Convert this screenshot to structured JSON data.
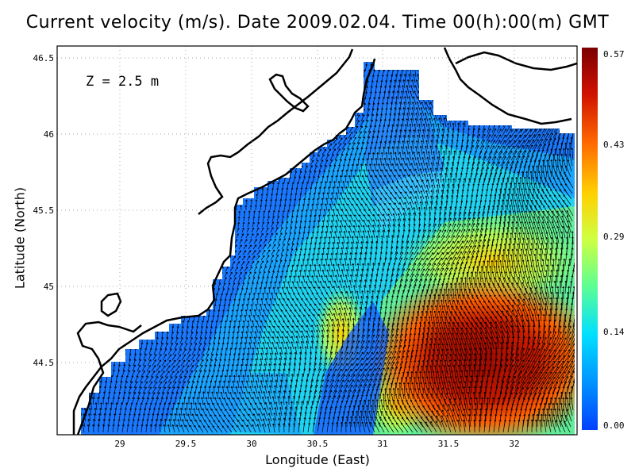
{
  "title": "Current velocity (m/s). Date 2009.02.04. Time 00(h):00(m) GMT",
  "depth_label": "Z = 2.5 m",
  "x_axis": {
    "label": "Longitude (East)",
    "ticks": [
      "29",
      "29.5",
      "30",
      "30.5",
      "31",
      "31.5",
      "32"
    ],
    "range": [
      28.5,
      32.45
    ]
  },
  "y_axis": {
    "label": "Latitude (North)",
    "ticks": [
      "44.5",
      "45",
      "45.5",
      "46",
      "46.5"
    ],
    "range": [
      44.04,
      46.55
    ]
  },
  "colorbar": {
    "ticks": [
      "0.57",
      "0.43",
      "0.29",
      "0.14",
      "0.00"
    ],
    "min": 0.0,
    "max": 0.57,
    "colors": [
      "#0040ff",
      "#0090ff",
      "#00e0ff",
      "#60ff90",
      "#d0ff40",
      "#ffd000",
      "#ff6a00",
      "#d01000",
      "#7a0000"
    ]
  },
  "grid": "dotted",
  "land_color": "#ffffff",
  "coast_color": "#000000",
  "arrow_color": "#000000"
}
